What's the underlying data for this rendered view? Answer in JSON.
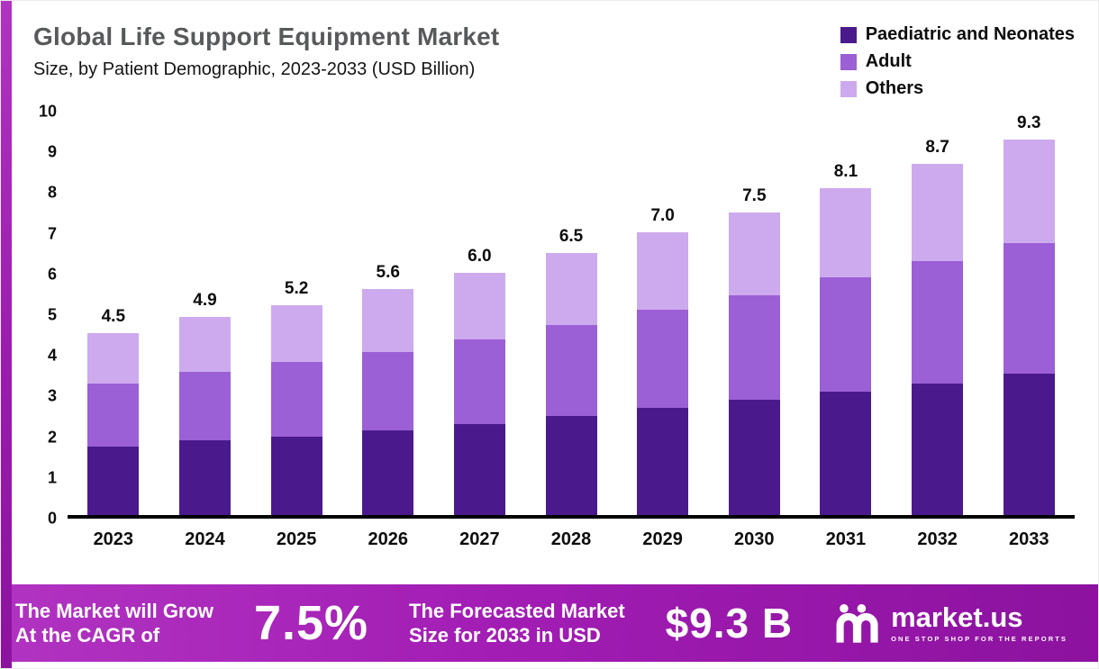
{
  "header": {
    "title": "Global Life Support Equipment Market",
    "subtitle": "Size, by Patient Demographic, 2023-2033 (USD Billion)"
  },
  "legend": [
    {
      "label": "Paediatric and Neonates",
      "color": "#4a1a8c"
    },
    {
      "label": "Adult",
      "color": "#9b5fd6"
    },
    {
      "label": "Others",
      "color": "#cdaaee"
    }
  ],
  "chart_data": {
    "type": "bar",
    "stacked": true,
    "title": "Global Life Support Equipment Market Size, by Patient Demographic, 2023-2033 (USD Billion)",
    "categories": [
      "2023",
      "2024",
      "2025",
      "2026",
      "2027",
      "2028",
      "2029",
      "2030",
      "2031",
      "2032",
      "2033"
    ],
    "series": [
      {
        "name": "Paediatric and Neonates",
        "color": "#4a1a8c",
        "values": [
          1.7,
          1.85,
          1.95,
          2.1,
          2.25,
          2.45,
          2.65,
          2.85,
          3.05,
          3.25,
          3.5
        ]
      },
      {
        "name": "Adult",
        "color": "#9b5fd6",
        "values": [
          1.55,
          1.7,
          1.85,
          1.95,
          2.1,
          2.25,
          2.45,
          2.6,
          2.85,
          3.05,
          3.25
        ]
      },
      {
        "name": "Others",
        "color": "#cdaaee",
        "values": [
          1.25,
          1.35,
          1.4,
          1.55,
          1.65,
          1.8,
          1.9,
          2.05,
          2.2,
          2.4,
          2.55
        ]
      }
    ],
    "totals": [
      4.5,
      4.9,
      5.2,
      5.6,
      6.0,
      6.5,
      7.0,
      7.5,
      8.1,
      8.7,
      9.3
    ],
    "xlabel": "",
    "ylabel": "",
    "ylim": [
      0,
      10
    ],
    "yticks": [
      0,
      1,
      2,
      3,
      4,
      5,
      6,
      7,
      8,
      9,
      10
    ],
    "grid": false,
    "legend_position": "top-right",
    "unit": "USD Billion"
  },
  "footer": {
    "cagr_line1": "The Market will Grow",
    "cagr_line2": "At the CAGR of",
    "cagr_value": "7.5%",
    "forecast_line1": "The Forecasted Market",
    "forecast_line2": "Size for 2033 in USD",
    "forecast_value": "$9.3 B",
    "brand": "market.us",
    "brand_tagline": "One Stop Shop For The Reports"
  },
  "accent_colors": {
    "banner_gradient_start": "#b133c1",
    "banner_gradient_end": "#8c129f",
    "title_gray": "#58595b"
  }
}
